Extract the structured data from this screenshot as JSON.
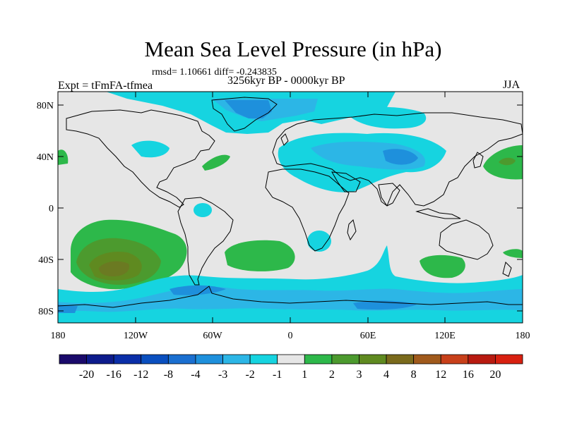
{
  "title": "Mean Sea Level Pressure (in hPa)",
  "stats": "rmsd= 1.10661 diff= -0.243835",
  "period": "3256kyr BP - 0000kyr BP",
  "experiment": "Expt = tFmFA-tfmea",
  "season": "JJA",
  "lat_ticks": [
    "80N",
    "40N",
    "0",
    "40S",
    "80S"
  ],
  "lon_ticks": [
    "180",
    "120W",
    "60W",
    "0",
    "60E",
    "120E",
    "180"
  ],
  "colorbar": {
    "labels": [
      "-20",
      "-16",
      "-12",
      "-8",
      "-4",
      "-3",
      "-2",
      "-1",
      "1",
      "2",
      "3",
      "4",
      "8",
      "12",
      "16",
      "20"
    ],
    "colors": [
      "#1a0a6b",
      "#0d1b8c",
      "#0a2ea8",
      "#0a4fbf",
      "#1a6fd0",
      "#1e90dc",
      "#2cb6e6",
      "#16d4e0",
      "#e6e6e6",
      "#2db84a",
      "#4c9a2e",
      "#5f8a20",
      "#7a6a1c",
      "#a05a1c",
      "#c8401a",
      "#b81a10",
      "#d82010"
    ]
  }
}
